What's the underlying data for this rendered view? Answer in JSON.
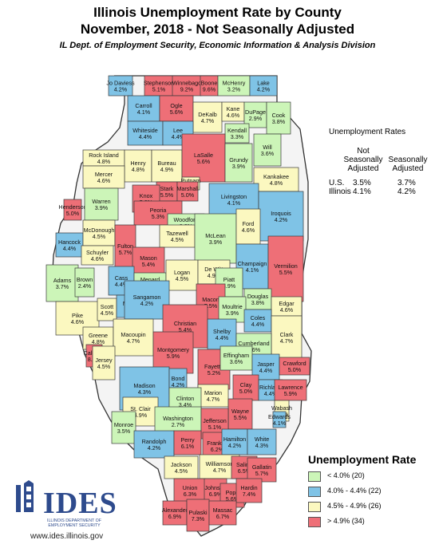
{
  "title": "Illinois Unemployment Rate by County",
  "subtitle": "November, 2018 -  Not Seasonally Adjusted",
  "source": "IL Dept. of Employment Security, Economic Information & Analysis Division",
  "rates_table": {
    "title": "Unemployment Rates",
    "col1": [
      "Not",
      "Seasonally",
      "Adjusted"
    ],
    "col2": [
      "Seasonally",
      "Adjusted"
    ],
    "rows": [
      {
        "area": "U.S.",
        "nsa": "3.5%",
        "sa": "3.7%"
      },
      {
        "area": "Illinois",
        "nsa": "4.1%",
        "sa": "4.2%"
      }
    ]
  },
  "legend": {
    "title": "Unemployment Rate",
    "items": [
      {
        "label": "< 4.0% (20)",
        "color": "#ccf5b8"
      },
      {
        "label": "4.0% - 4.4% (22)",
        "color": "#7fc3e6"
      },
      {
        "label": "4.5% - 4.9% (26)",
        "color": "#fbf8c0"
      },
      {
        "label": "> 4.9% (34)",
        "color": "#ee6f77"
      }
    ]
  },
  "counties": [
    {
      "name": "Jo Daviess",
      "rate": "4.2%",
      "cls": 1
    },
    {
      "name": "Stephenson",
      "rate": "5.1%",
      "cls": 3
    },
    {
      "name": "Winnebago",
      "rate": "9.2%",
      "cls": 3
    },
    {
      "name": "Boone",
      "rate": "9.6%",
      "cls": 3
    },
    {
      "name": "McHenry",
      "rate": "3.2%",
      "cls": 0
    },
    {
      "name": "Lake",
      "rate": "4.2%",
      "cls": 1
    },
    {
      "name": "Carroll",
      "rate": "4.1%",
      "cls": 1
    },
    {
      "name": "Ogle",
      "rate": "5.6%",
      "cls": 3
    },
    {
      "name": "DeKalb",
      "rate": "4.7%",
      "cls": 2
    },
    {
      "name": "Kane",
      "rate": "4.6%",
      "cls": 2
    },
    {
      "name": "DuPage",
      "rate": "2.9%",
      "cls": 0
    },
    {
      "name": "Cook",
      "rate": "3.8%",
      "cls": 0
    },
    {
      "name": "Whiteside",
      "rate": "4.4%",
      "cls": 1
    },
    {
      "name": "Lee",
      "rate": "4.4%",
      "cls": 1
    },
    {
      "name": "Kendall",
      "rate": "3.3%",
      "cls": 0
    },
    {
      "name": "Will",
      "rate": "3.6%",
      "cls": 0
    },
    {
      "name": "Rock Island",
      "rate": "4.8%",
      "cls": 2
    },
    {
      "name": "Henry",
      "rate": "4.8%",
      "cls": 2
    },
    {
      "name": "Bureau",
      "rate": "4.9%",
      "cls": 2
    },
    {
      "name": "LaSalle",
      "rate": "5.6%",
      "cls": 3
    },
    {
      "name": "Grundy",
      "rate": "3.9%",
      "cls": 0
    },
    {
      "name": "Putnam",
      "rate": "4.9%",
      "cls": 2
    },
    {
      "name": "Kankakee",
      "rate": "4.8%",
      "cls": 2
    },
    {
      "name": "Mercer",
      "rate": "4.6%",
      "cls": 2
    },
    {
      "name": "Stark",
      "rate": "5.5%",
      "cls": 3
    },
    {
      "name": "Marshall",
      "rate": "5.0%",
      "cls": 3
    },
    {
      "name": "Knox",
      "rate": "5.2%",
      "cls": 3
    },
    {
      "name": "Henderson",
      "rate": "5.0%",
      "cls": 3
    },
    {
      "name": "Warren",
      "rate": "3.9%",
      "cls": 0
    },
    {
      "name": "Peoria",
      "rate": "5.3%",
      "cls": 3
    },
    {
      "name": "Livingston",
      "rate": "4.1%",
      "cls": 1
    },
    {
      "name": "Woodford",
      "rate": "3.8%",
      "cls": 0
    },
    {
      "name": "Iroquois",
      "rate": "4.2%",
      "cls": 1
    },
    {
      "name": "Tazewell",
      "rate": "4.5%",
      "cls": 2
    },
    {
      "name": "Hancock",
      "rate": "4.4%",
      "cls": 1
    },
    {
      "name": "McDonough",
      "rate": "4.5%",
      "cls": 2
    },
    {
      "name": "Fulton",
      "rate": "5.7%",
      "cls": 3
    },
    {
      "name": "McLean",
      "rate": "3.9%",
      "cls": 0
    },
    {
      "name": "Ford",
      "rate": "4.6%",
      "cls": 2
    },
    {
      "name": "Mason",
      "rate": "5.4%",
      "cls": 3
    },
    {
      "name": "Schuyler",
      "rate": "4.6%",
      "cls": 2
    },
    {
      "name": "Champaign",
      "rate": "4.1%",
      "cls": 1
    },
    {
      "name": "Vermilion",
      "rate": "5.5%",
      "cls": 3
    },
    {
      "name": "Adams",
      "rate": "3.7%",
      "cls": 0
    },
    {
      "name": "Brown",
      "rate": "2.4%",
      "cls": 0
    },
    {
      "name": "Cass",
      "rate": "4.4%",
      "cls": 1
    },
    {
      "name": "Menard",
      "rate": "3.6%",
      "cls": 0
    },
    {
      "name": "Logan",
      "rate": "4.5%",
      "cls": 2
    },
    {
      "name": "De Witt",
      "rate": "4.9%",
      "cls": 2
    },
    {
      "name": "Piatt",
      "rate": "3.9%",
      "cls": 0
    },
    {
      "name": "Macon",
      "rate": "5.5%",
      "cls": 3
    },
    {
      "name": "Douglas",
      "rate": "3.8%",
      "cls": 0
    },
    {
      "name": "Edgar",
      "rate": "4.6%",
      "cls": 2
    },
    {
      "name": "Pike",
      "rate": "4.6%",
      "cls": 2
    },
    {
      "name": "Scott",
      "rate": "4.5%",
      "cls": 2
    },
    {
      "name": "Morgan",
      "rate": "4.2%",
      "cls": 1
    },
    {
      "name": "Sangamon",
      "rate": "4.2%",
      "cls": 1
    },
    {
      "name": "Moultrie",
      "rate": "3.9%",
      "cls": 0
    },
    {
      "name": "Coles",
      "rate": "4.4%",
      "cls": 1
    },
    {
      "name": "Christian",
      "rate": "5.4%",
      "cls": 3
    },
    {
      "name": "Shelby",
      "rate": "4.4%",
      "cls": 1
    },
    {
      "name": "Clark",
      "rate": "4.7%",
      "cls": 2
    },
    {
      "name": "Greene",
      "rate": "4.8%",
      "cls": 2
    },
    {
      "name": "Macoupin",
      "rate": "4.7%",
      "cls": 2
    },
    {
      "name": "Montgomery",
      "rate": "5.9%",
      "cls": 3
    },
    {
      "name": "Cumberland",
      "rate": "3.6%",
      "cls": 0
    },
    {
      "name": "Calhoun",
      "rate": "8.6%",
      "cls": 3
    },
    {
      "name": "Jersey",
      "rate": "4.5%",
      "cls": 2
    },
    {
      "name": "Fayette",
      "rate": "5.2%",
      "cls": 3
    },
    {
      "name": "Effingham",
      "rate": "3.6%",
      "cls": 0
    },
    {
      "name": "Jasper",
      "rate": "4.4%",
      "cls": 1
    },
    {
      "name": "Crawford",
      "rate": "5.0%",
      "cls": 3
    },
    {
      "name": "Madison",
      "rate": "4.3%",
      "cls": 1
    },
    {
      "name": "Bond",
      "rate": "4.2%",
      "cls": 1
    },
    {
      "name": "Clay",
      "rate": "5.0%",
      "cls": 3
    },
    {
      "name": "Richland",
      "rate": "4.4%",
      "cls": 1
    },
    {
      "name": "Lawrence",
      "rate": "5.9%",
      "cls": 3
    },
    {
      "name": "Marion",
      "rate": "4.7%",
      "cls": 2
    },
    {
      "name": "Clinton",
      "rate": "3.4%",
      "cls": 0
    },
    {
      "name": "St. Clair",
      "rate": "4.9%",
      "cls": 2
    },
    {
      "name": "Wayne",
      "rate": "5.5%",
      "cls": 3
    },
    {
      "name": "Wabash",
      "rate": "4.6%",
      "cls": 2
    },
    {
      "name": "Edwards",
      "rate": "4.1%",
      "cls": 1
    },
    {
      "name": "Washington",
      "rate": "2.7%",
      "cls": 0
    },
    {
      "name": "Jefferson",
      "rate": "5.1%",
      "cls": 3
    },
    {
      "name": "Monroe",
      "rate": "3.5%",
      "cls": 0
    },
    {
      "name": "Randolph",
      "rate": "4.2%",
      "cls": 1
    },
    {
      "name": "Perry",
      "rate": "6.1%",
      "cls": 3
    },
    {
      "name": "Franklin",
      "rate": "6.2%",
      "cls": 3
    },
    {
      "name": "Hamilton",
      "rate": "4.2%",
      "cls": 1
    },
    {
      "name": "White",
      "rate": "4.3%",
      "cls": 1
    },
    {
      "name": "Jackson",
      "rate": "4.5%",
      "cls": 2
    },
    {
      "name": "Williamson",
      "rate": "4.7%",
      "cls": 2
    },
    {
      "name": "Saline",
      "rate": "6.5%",
      "cls": 3
    },
    {
      "name": "Gallatin",
      "rate": "5.7%",
      "cls": 3
    },
    {
      "name": "Union",
      "rate": "6.3%",
      "cls": 3
    },
    {
      "name": "Johnson",
      "rate": "6.9%",
      "cls": 3
    },
    {
      "name": "Pope",
      "rate": "5.6%",
      "cls": 3
    },
    {
      "name": "Hardin",
      "rate": "7.4%",
      "cls": 3
    },
    {
      "name": "Alexander",
      "rate": "6.9%",
      "cls": 3
    },
    {
      "name": "Pulaski",
      "rate": "7.3%",
      "cls": 3
    },
    {
      "name": "Massac",
      "rate": "6.7%",
      "cls": 3
    }
  ],
  "logo": {
    "name": "IDES",
    "line1": "ILLINOIS DEPARTMENT OF",
    "line2": "EMPLOYMENT SECURITY"
  },
  "website": "www.ides.illinois.gov"
}
